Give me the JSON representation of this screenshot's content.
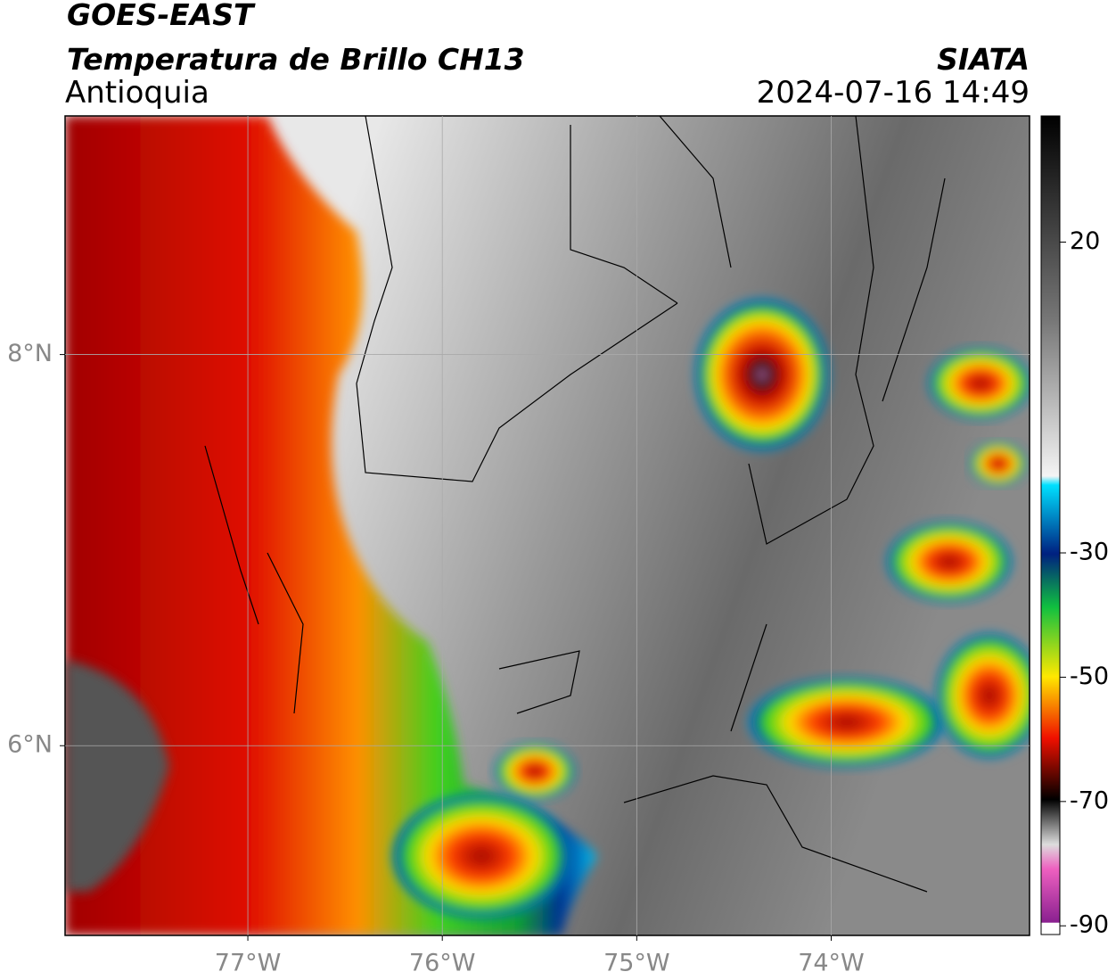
{
  "header": {
    "title": "GOES-EAST",
    "subtitle": "Temperatura de Brillo CH13",
    "region": "Antioquia",
    "source": "SIATA",
    "datetime": "2024-07-16 14:49"
  },
  "map": {
    "xlim": [
      -77.94,
      -72.98
    ],
    "ylim": [
      5.03,
      9.22
    ],
    "xticks": [
      {
        "value": -77,
        "label": "77°W"
      },
      {
        "value": -76,
        "label": "76°W"
      },
      {
        "value": -75,
        "label": "75°W"
      },
      {
        "value": -74,
        "label": "74°W"
      }
    ],
    "yticks": [
      {
        "value": 6,
        "label": "6°N"
      },
      {
        "value": 8,
        "label": "8°N"
      }
    ],
    "grid": true
  },
  "colorbar": {
    "lim": [
      -91.4,
      40.3
    ],
    "ticks": [
      20,
      -30,
      -50,
      -70,
      -90
    ]
  }
}
